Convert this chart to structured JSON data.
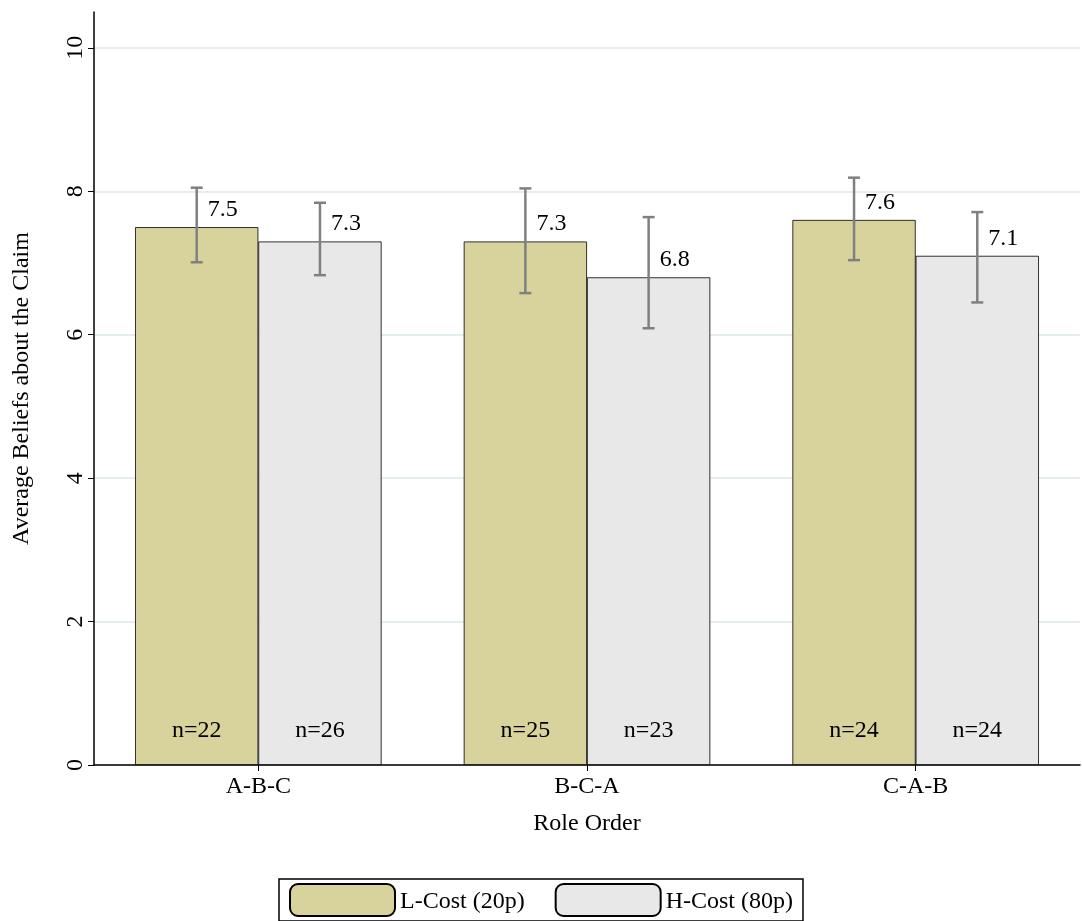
{
  "chart_data": {
    "type": "bar",
    "xlabel": "Role Order",
    "ylabel": "Average Beliefs about the Claim",
    "categories": [
      "A-B-C",
      "B-C-A",
      "C-A-B"
    ],
    "series": [
      {
        "name": "L-Cost (20p)",
        "color": "#d8d39d",
        "values": [
          7.5,
          7.3,
          7.6
        ],
        "errors": [
          [
            7.01,
            8.05
          ],
          [
            6.58,
            8.04
          ],
          [
            7.04,
            8.19
          ]
        ]
      },
      {
        "name": "H-Cost (80p)",
        "color": "#e8e8e8",
        "values": [
          7.3,
          6.8,
          7.1
        ],
        "errors": [
          [
            6.83,
            7.84
          ],
          [
            6.09,
            7.64
          ],
          [
            6.45,
            7.71
          ]
        ]
      }
    ],
    "ylim": [
      0,
      10.5
    ],
    "yticks": [
      0,
      2,
      4,
      6,
      8,
      10
    ],
    "grid": "y",
    "legend": "bottom",
    "data_labels": true,
    "annotations": [
      {
        "text": "n=22",
        "x": "A-B-C",
        "y": 0.5
      },
      {
        "text": "n=26",
        "x": "A-B-C",
        "y": 0.5
      },
      {
        "text": "n=25",
        "x": "B-C-A",
        "y": 0.5
      },
      {
        "text": "n=23",
        "x": "B-C-A",
        "y": 0.5
      },
      {
        "text": "n=24",
        "x": "C-A-B",
        "y": 0.5
      },
      {
        "text": "n=24",
        "x": "C-A-B",
        "y": 0.5
      }
    ]
  }
}
